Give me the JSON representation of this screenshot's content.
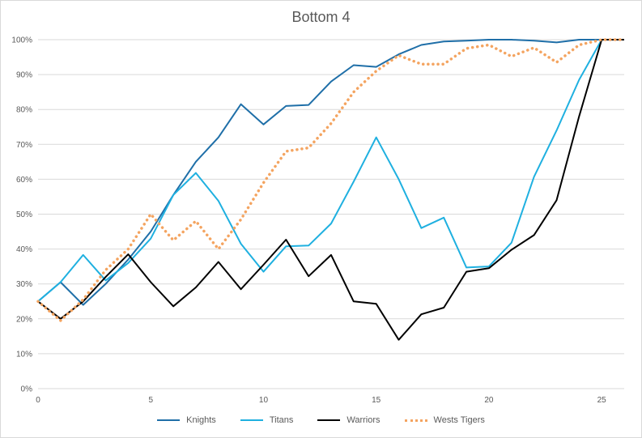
{
  "chart_data": {
    "type": "line",
    "title": "Bottom 4",
    "xlim": [
      0,
      26
    ],
    "ylim": [
      0,
      1
    ],
    "x_ticks": [
      0,
      5,
      10,
      15,
      20,
      25
    ],
    "y_ticks": [
      "0%",
      "10%",
      "20%",
      "30%",
      "40%",
      "50%",
      "60%",
      "70%",
      "80%",
      "90%",
      "100%"
    ],
    "grid": "horizontal",
    "legend": "bottom",
    "x": [
      0,
      1,
      2,
      3,
      4,
      5,
      6,
      7,
      8,
      9,
      10,
      11,
      12,
      13,
      14,
      15,
      16,
      17,
      18,
      19,
      20,
      21,
      22,
      23,
      24,
      25,
      26
    ],
    "series": [
      {
        "name": "Knights",
        "color": "#1f6fa8",
        "style": "solid",
        "values": [
          0.25,
          0.305,
          0.24,
          0.3,
          0.37,
          0.45,
          0.555,
          0.65,
          0.72,
          0.815,
          0.757,
          0.81,
          0.813,
          0.88,
          0.927,
          0.922,
          0.958,
          0.985,
          0.995,
          0.997,
          1.0,
          1.0,
          0.997,
          0.992,
          1.0,
          1.0,
          1.0
        ]
      },
      {
        "name": "Titans",
        "color": "#1fb0e0",
        "style": "solid",
        "values": [
          0.25,
          0.305,
          0.383,
          0.31,
          0.36,
          0.43,
          0.555,
          0.618,
          0.538,
          0.415,
          0.335,
          0.408,
          0.41,
          0.473,
          0.593,
          0.72,
          0.6,
          0.46,
          0.49,
          0.347,
          0.35,
          0.418,
          0.607,
          0.74,
          0.885,
          1.0,
          1.0
        ]
      },
      {
        "name": "Warriors",
        "color": "#000000",
        "style": "solid",
        "values": [
          0.25,
          0.2,
          0.25,
          0.32,
          0.385,
          0.305,
          0.236,
          0.29,
          0.363,
          0.285,
          0.355,
          0.427,
          0.322,
          0.383,
          0.25,
          0.243,
          0.14,
          0.213,
          0.232,
          0.335,
          0.345,
          0.398,
          0.44,
          0.54,
          0.78,
          1.0,
          1.0
        ]
      },
      {
        "name": "Wests Tigers",
        "color": "#f4a460",
        "style": "dotted",
        "values": [
          0.25,
          0.195,
          0.255,
          0.34,
          0.4,
          0.5,
          0.425,
          0.48,
          0.4,
          0.485,
          0.59,
          0.68,
          0.69,
          0.76,
          0.85,
          0.91,
          0.955,
          0.93,
          0.93,
          0.975,
          0.985,
          0.952,
          0.977,
          0.935,
          0.985,
          1.0,
          1.0
        ]
      }
    ]
  }
}
